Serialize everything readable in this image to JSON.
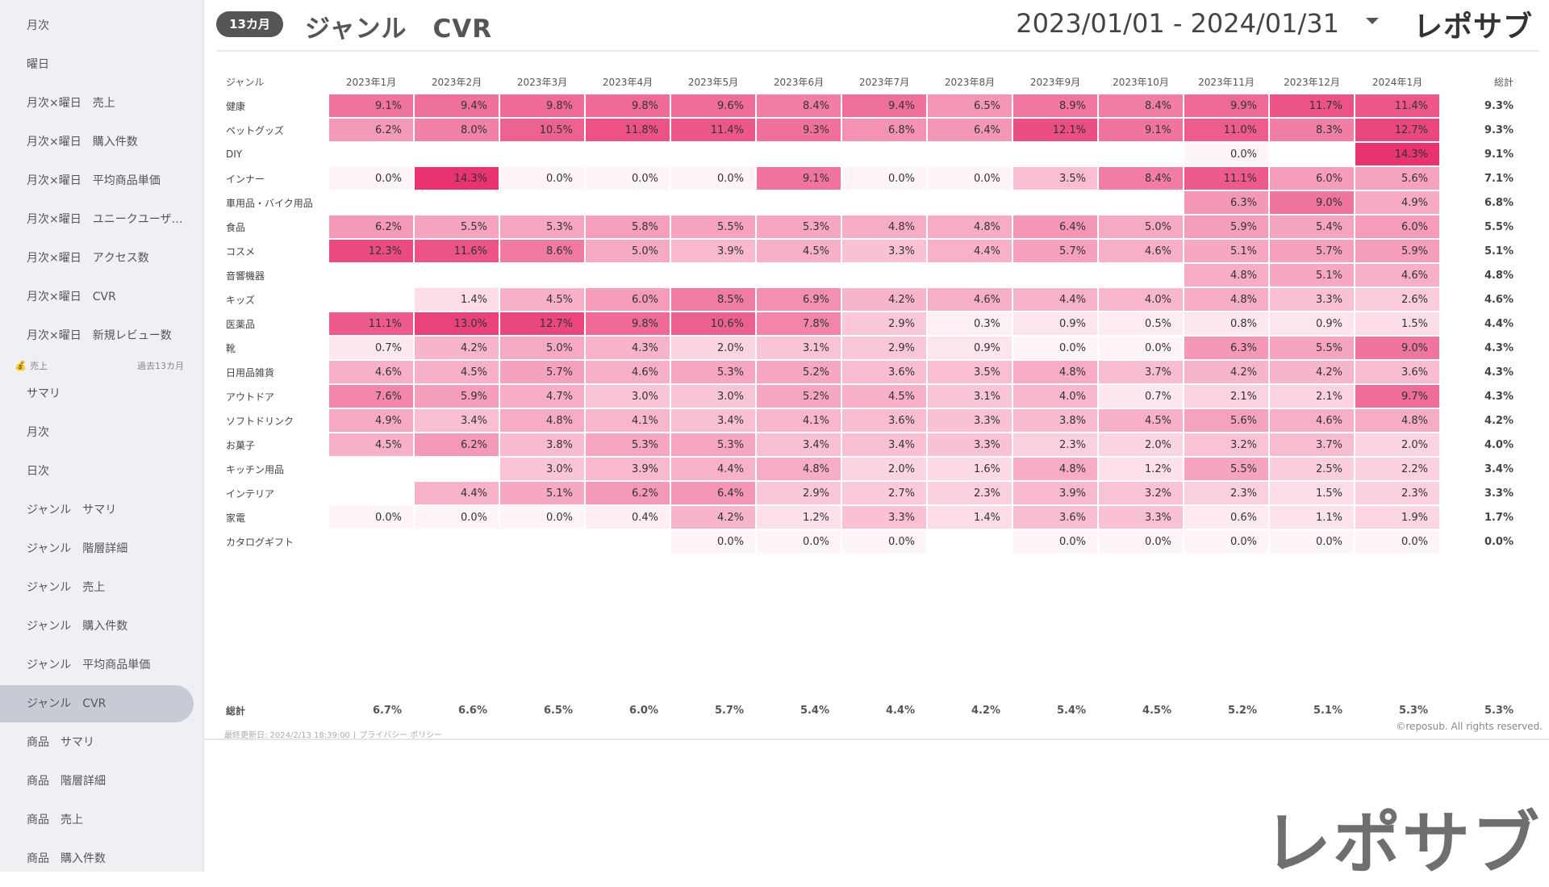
{
  "sidebar": {
    "items_top": [
      "月次",
      "曜日",
      "月次×曜日　売上",
      "月次×曜日　購入件数",
      "月次×曜日　平均商品単価",
      "月次×曜日　ユニークユーザー数",
      "月次×曜日　アクセス数",
      "月次×曜日　CVR",
      "月次×曜日　新規レビュー数"
    ],
    "section": {
      "label": "売上",
      "right": "過去13カ月",
      "icon": "money-bag-icon"
    },
    "items_bottom": [
      "サマリ",
      "月次",
      "日次",
      "ジャンル　サマリ",
      "ジャンル　階層詳細",
      "ジャンル　売上",
      "ジャンル　購入件数",
      "ジャンル　平均商品単価",
      "ジャンル　CVR",
      "商品　サマリ",
      "商品　階層詳細",
      "商品　売上",
      "商品　購入件数"
    ],
    "active_label": "ジャンル　CVR"
  },
  "header": {
    "badge": "13カ月",
    "title": "ジャンル　CVR",
    "date_range": "2023/01/01 - 2024/01/31",
    "logo": "レポサブ",
    "dropdown_icon": "caret-down-icon"
  },
  "table": {
    "header_genre": "ジャンル",
    "header_total": "総計",
    "months": [
      "2023年1月",
      "2023年2月",
      "2023年3月",
      "2023年4月",
      "2023年5月",
      "2023年6月",
      "2023年7月",
      "2023年8月",
      "2023年9月",
      "2023年10月",
      "2023年11月",
      "2023年12月",
      "2024年1月"
    ],
    "rows": [
      {
        "genre": "健康",
        "values": [
          "9.1%",
          "9.4%",
          "9.8%",
          "9.8%",
          "9.6%",
          "8.4%",
          "9.4%",
          "6.5%",
          "8.9%",
          "8.4%",
          "9.9%",
          "11.7%",
          "11.4%"
        ],
        "total": "9.3%"
      },
      {
        "genre": "ペットグッズ",
        "values": [
          "6.2%",
          "8.0%",
          "10.5%",
          "11.8%",
          "11.4%",
          "9.3%",
          "6.8%",
          "6.4%",
          "12.1%",
          "9.1%",
          "11.0%",
          "8.3%",
          "12.7%"
        ],
        "total": "9.3%"
      },
      {
        "genre": "DIY",
        "values": [
          "",
          "",
          "",
          "",
          "",
          "",
          "",
          "",
          "",
          "",
          "0.0%",
          "",
          "14.3%"
        ],
        "total": "9.1%"
      },
      {
        "genre": "インナー",
        "values": [
          "0.0%",
          "14.3%",
          "0.0%",
          "0.0%",
          "0.0%",
          "9.1%",
          "0.0%",
          "0.0%",
          "3.5%",
          "8.4%",
          "11.1%",
          "6.0%",
          "5.6%"
        ],
        "total": "7.1%"
      },
      {
        "genre": "車用品・バイク用品",
        "values": [
          "",
          "",
          "",
          "",
          "",
          "",
          "",
          "",
          "",
          "",
          "6.3%",
          "9.0%",
          "4.9%"
        ],
        "total": "6.8%"
      },
      {
        "genre": "食品",
        "values": [
          "6.2%",
          "5.5%",
          "5.3%",
          "5.8%",
          "5.5%",
          "5.3%",
          "4.8%",
          "4.8%",
          "6.4%",
          "5.0%",
          "5.9%",
          "5.4%",
          "6.0%"
        ],
        "total": "5.5%"
      },
      {
        "genre": "コスメ",
        "values": [
          "12.3%",
          "11.6%",
          "8.6%",
          "5.0%",
          "3.9%",
          "4.5%",
          "3.3%",
          "4.4%",
          "5.7%",
          "4.6%",
          "5.1%",
          "5.7%",
          "5.9%"
        ],
        "total": "5.1%"
      },
      {
        "genre": "音響機器",
        "values": [
          "",
          "",
          "",
          "",
          "",
          "",
          "",
          "",
          "",
          "",
          "4.8%",
          "5.1%",
          "4.6%"
        ],
        "total": "4.8%"
      },
      {
        "genre": "キッズ",
        "values": [
          "",
          "1.4%",
          "4.5%",
          "6.0%",
          "8.5%",
          "6.9%",
          "4.2%",
          "4.6%",
          "4.4%",
          "4.0%",
          "4.8%",
          "3.3%",
          "2.6%"
        ],
        "total": "4.6%"
      },
      {
        "genre": "医薬品",
        "values": [
          "11.1%",
          "13.0%",
          "12.7%",
          "9.8%",
          "10.6%",
          "7.8%",
          "2.9%",
          "0.3%",
          "0.9%",
          "0.5%",
          "0.8%",
          "0.9%",
          "1.5%"
        ],
        "total": "4.4%"
      },
      {
        "genre": "靴",
        "values": [
          "0.7%",
          "4.2%",
          "5.0%",
          "4.3%",
          "2.0%",
          "3.1%",
          "2.9%",
          "0.9%",
          "0.0%",
          "0.0%",
          "6.3%",
          "5.5%",
          "9.0%"
        ],
        "total": "4.3%"
      },
      {
        "genre": "日用品雑貨",
        "values": [
          "4.6%",
          "4.5%",
          "5.7%",
          "4.6%",
          "5.3%",
          "5.2%",
          "3.6%",
          "3.5%",
          "4.8%",
          "3.7%",
          "4.2%",
          "4.2%",
          "3.6%"
        ],
        "total": "4.3%"
      },
      {
        "genre": "アウトドア",
        "values": [
          "7.6%",
          "5.9%",
          "4.7%",
          "3.0%",
          "3.0%",
          "5.2%",
          "4.5%",
          "3.1%",
          "4.0%",
          "0.7%",
          "2.1%",
          "2.1%",
          "9.7%"
        ],
        "total": "4.3%"
      },
      {
        "genre": "ソフトドリンク",
        "values": [
          "4.9%",
          "3.4%",
          "4.8%",
          "4.1%",
          "3.4%",
          "4.1%",
          "3.6%",
          "3.3%",
          "3.8%",
          "4.5%",
          "5.6%",
          "4.6%",
          "4.8%"
        ],
        "total": "4.2%"
      },
      {
        "genre": "お菓子",
        "values": [
          "4.5%",
          "6.2%",
          "3.8%",
          "5.3%",
          "5.3%",
          "3.4%",
          "3.4%",
          "3.3%",
          "2.3%",
          "2.0%",
          "3.2%",
          "3.7%",
          "2.0%"
        ],
        "total": "4.0%"
      },
      {
        "genre": "キッチン用品",
        "values": [
          "",
          "",
          "3.0%",
          "3.9%",
          "4.4%",
          "4.8%",
          "2.0%",
          "1.6%",
          "4.8%",
          "1.2%",
          "5.5%",
          "2.5%",
          "2.2%"
        ],
        "total": "3.4%"
      },
      {
        "genre": "インテリア",
        "values": [
          "",
          "4.4%",
          "5.1%",
          "6.2%",
          "6.4%",
          "2.9%",
          "2.7%",
          "2.3%",
          "3.9%",
          "3.2%",
          "2.3%",
          "1.5%",
          "2.3%"
        ],
        "total": "3.3%"
      },
      {
        "genre": "家電",
        "values": [
          "0.0%",
          "0.0%",
          "0.0%",
          "0.4%",
          "4.2%",
          "1.2%",
          "3.3%",
          "1.4%",
          "3.6%",
          "3.3%",
          "0.6%",
          "1.1%",
          "1.9%"
        ],
        "total": "1.7%"
      },
      {
        "genre": "カタログギフト",
        "values": [
          "",
          "",
          "",
          "",
          "0.0%",
          "0.0%",
          "0.0%",
          "",
          "0.0%",
          "0.0%",
          "0.0%",
          "0.0%",
          "0.0%"
        ],
        "total": "0.0%"
      }
    ],
    "grand_total": {
      "label": "総計",
      "values": [
        "6.7%",
        "6.6%",
        "6.5%",
        "6.0%",
        "5.7%",
        "5.4%",
        "4.4%",
        "4.2%",
        "5.4%",
        "4.5%",
        "5.2%",
        "5.1%",
        "5.3%"
      ],
      "total": "5.3%"
    }
  },
  "footer": {
    "updated": "最終更新日: 2024/2/13 18:39:00",
    "privacy": "プライバシー ポリシー",
    "copyright": "©reposub. All rights reserved.",
    "big_logo": "レポサブ"
  },
  "colors": {
    "heat_max": "#e8336e",
    "heat_min": "#fff5f8",
    "sidebar_bg": "#eef0f3",
    "sidebar_active": "#c7cbd5",
    "badge_bg": "#555555"
  }
}
